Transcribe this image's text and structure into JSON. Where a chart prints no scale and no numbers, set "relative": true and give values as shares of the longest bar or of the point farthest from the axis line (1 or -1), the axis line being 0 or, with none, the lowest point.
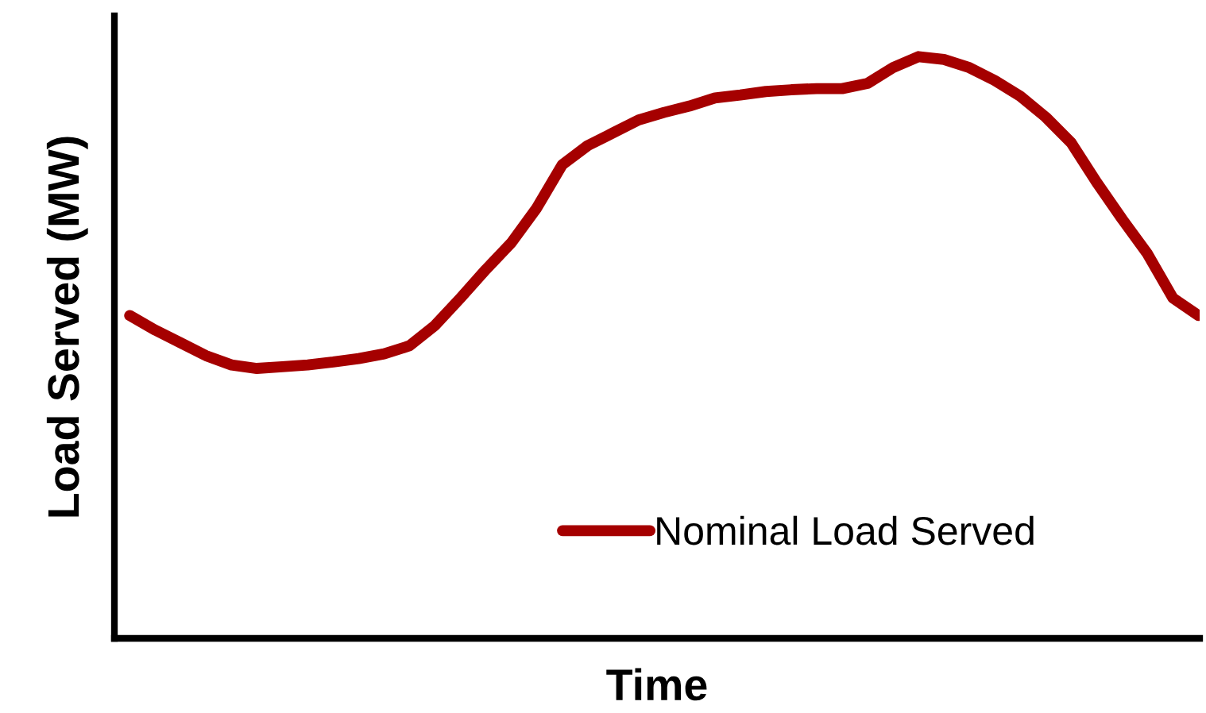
{
  "chart_data": {
    "type": "line",
    "relative": true,
    "xlabel": "Time",
    "ylabel": "Load Served (MW)",
    "legend": "bottom right",
    "grid": false,
    "marker": "none",
    "line_style": "solid",
    "categories": [
      null,
      null,
      null,
      null,
      null,
      null,
      null,
      null,
      null,
      null,
      null,
      null,
      null,
      null,
      null,
      null,
      null,
      null,
      null,
      null,
      null,
      null,
      null,
      null,
      null,
      null,
      null,
      null,
      null,
      null,
      null,
      null,
      null,
      null,
      null,
      null,
      null,
      null,
      null,
      null,
      null,
      null,
      null
    ],
    "series": [
      {
        "name": "Nominal Load Served",
        "color": "#a50000",
        "values": [
          0.555,
          0.53,
          0.508,
          0.486,
          0.47,
          0.464,
          0.467,
          0.47,
          0.475,
          0.481,
          0.489,
          0.503,
          0.538,
          0.585,
          0.634,
          0.68,
          0.74,
          0.814,
          0.847,
          0.869,
          0.891,
          0.904,
          0.915,
          0.929,
          0.934,
          0.94,
          0.943,
          0.945,
          0.945,
          0.954,
          0.981,
          1,
          0.995,
          0.981,
          0.959,
          0.932,
          0.896,
          0.852,
          0.784,
          0.721,
          0.661,
          0.585,
          0.555
        ]
      }
    ]
  }
}
